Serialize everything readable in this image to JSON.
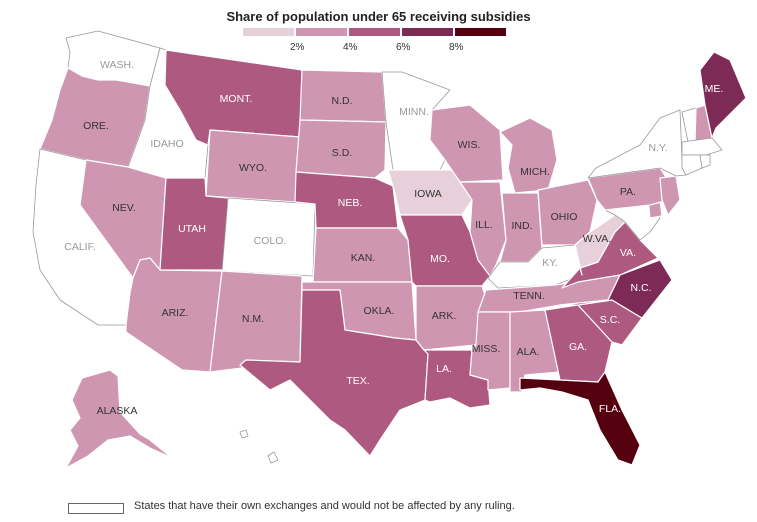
{
  "title": "Share of population under 65 receiving subsidies",
  "legend": {
    "colors": [
      "#e8d0da",
      "#cf96b2",
      "#ae5a80",
      "#7e2a57",
      "#55000f"
    ],
    "ticks": [
      "2%",
      "4%",
      "6%",
      "8%"
    ],
    "own_exchange_note": "States that have their own exchanges and would not be affected by any ruling."
  },
  "colors": {
    "own_exchange": "#ffffff",
    "border": "#ffffff",
    "label_light": "#ffffff",
    "label_dark": "#333333",
    "label_gray": "#999999"
  },
  "states": {
    "wa": {
      "label": "WASH.",
      "bin": 0
    },
    "or": {
      "label": "ORE.",
      "bin": 2
    },
    "ca": {
      "label": "CALIF.",
      "bin": 0
    },
    "id": {
      "label": "IDAHO",
      "bin": 0
    },
    "nv": {
      "label": "NEV.",
      "bin": 2
    },
    "mt": {
      "label": "MONT.",
      "bin": 3
    },
    "wy": {
      "label": "WYO.",
      "bin": 2
    },
    "ut": {
      "label": "UTAH",
      "bin": 3
    },
    "co": {
      "label": "COLO.",
      "bin": 0
    },
    "az": {
      "label": "ARIZ.",
      "bin": 2
    },
    "nm": {
      "label": "N.M.",
      "bin": 2
    },
    "nd": {
      "label": "N.D.",
      "bin": 2
    },
    "sd": {
      "label": "S.D.",
      "bin": 2
    },
    "ne": {
      "label": "NEB.",
      "bin": 3
    },
    "ks": {
      "label": "KAN.",
      "bin": 2
    },
    "ok": {
      "label": "OKLA.",
      "bin": 2
    },
    "tx": {
      "label": "TEX.",
      "bin": 3
    },
    "mn": {
      "label": "MINN.",
      "bin": 0
    },
    "ia": {
      "label": "IOWA",
      "bin": 1
    },
    "mo": {
      "label": "MO.",
      "bin": 3
    },
    "ar": {
      "label": "ARK.",
      "bin": 2
    },
    "la": {
      "label": "LA.",
      "bin": 3
    },
    "wi": {
      "label": "WIS.",
      "bin": 2
    },
    "il": {
      "label": "ILL.",
      "bin": 2
    },
    "mi": {
      "label": "MICH.",
      "bin": 2
    },
    "in": {
      "label": "IND.",
      "bin": 2
    },
    "oh": {
      "label": "OHIO",
      "bin": 2
    },
    "ky": {
      "label": "KY.",
      "bin": 0
    },
    "tn": {
      "label": "TENN.",
      "bin": 2
    },
    "ms": {
      "label": "MISS.",
      "bin": 2
    },
    "al": {
      "label": "ALA.",
      "bin": 2
    },
    "ga": {
      "label": "GA.",
      "bin": 3
    },
    "fl": {
      "label": "FLA.",
      "bin": 5
    },
    "sc": {
      "label": "S.C.",
      "bin": 3
    },
    "nc": {
      "label": "N.C.",
      "bin": 4
    },
    "va": {
      "label": "VA.",
      "bin": 3
    },
    "wv": {
      "label": "W.VA.",
      "bin": 1
    },
    "pa": {
      "label": "PA.",
      "bin": 2
    },
    "ny": {
      "label": "N.Y.",
      "bin": 0
    },
    "me": {
      "label": "ME.",
      "bin": 4
    },
    "ak": {
      "label": "ALASKA",
      "bin": 2
    },
    "hi": {
      "label": "",
      "bin": 0
    },
    "nh": {
      "label": "",
      "bin": 2
    },
    "vt": {
      "label": "",
      "bin": 0
    },
    "ma": {
      "label": "",
      "bin": 0
    },
    "ct": {
      "label": "",
      "bin": 0
    },
    "ri": {
      "label": "",
      "bin": 0
    },
    "nj": {
      "label": "",
      "bin": 2
    },
    "de": {
      "label": "",
      "bin": 2
    },
    "md": {
      "label": "",
      "bin": 0
    }
  }
}
